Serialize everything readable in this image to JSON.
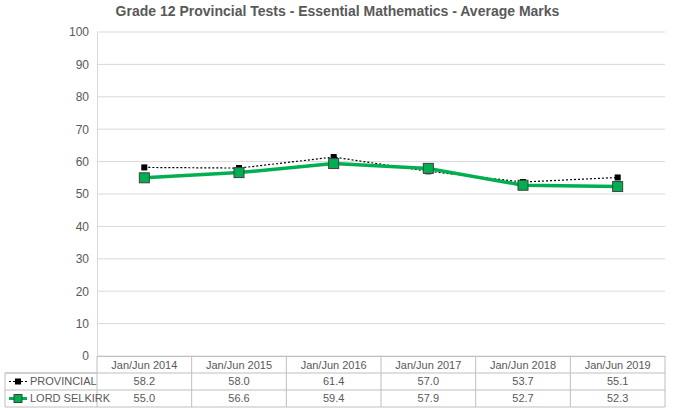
{
  "chart_data": {
    "type": "line",
    "title": "Grade 12 Provincial Tests - Essential Mathematics - Average Marks",
    "categories": [
      "Jan/Jun 2014",
      "Jan/Jun 2015",
      "Jan/Jun 2016",
      "Jan/Jun 2017",
      "Jan/Jun 2018",
      "Jan/Jun 2019"
    ],
    "series": [
      {
        "name": "PROVINCIAL",
        "color": "#000000",
        "marker": "square",
        "line_style": "dotted",
        "values": [
          58.2,
          58.0,
          61.4,
          57.0,
          53.7,
          55.1
        ],
        "value_labels": [
          "58.2",
          "58.0",
          "61.4",
          "57.0",
          "53.7",
          "55.1"
        ]
      },
      {
        "name": "LORD SELKIRK",
        "color": "#00b050",
        "marker": "square",
        "line_style": "solid",
        "values": [
          55.0,
          56.6,
          59.4,
          57.9,
          52.7,
          52.3
        ],
        "value_labels": [
          "55.0",
          "56.6",
          "59.4",
          "57.9",
          "52.7",
          "52.3"
        ]
      }
    ],
    "ylim": [
      0,
      100
    ],
    "yticks": [
      0,
      10,
      20,
      30,
      40,
      50,
      60,
      70,
      80,
      90,
      100
    ],
    "grid": true,
    "legend": "bottom"
  }
}
